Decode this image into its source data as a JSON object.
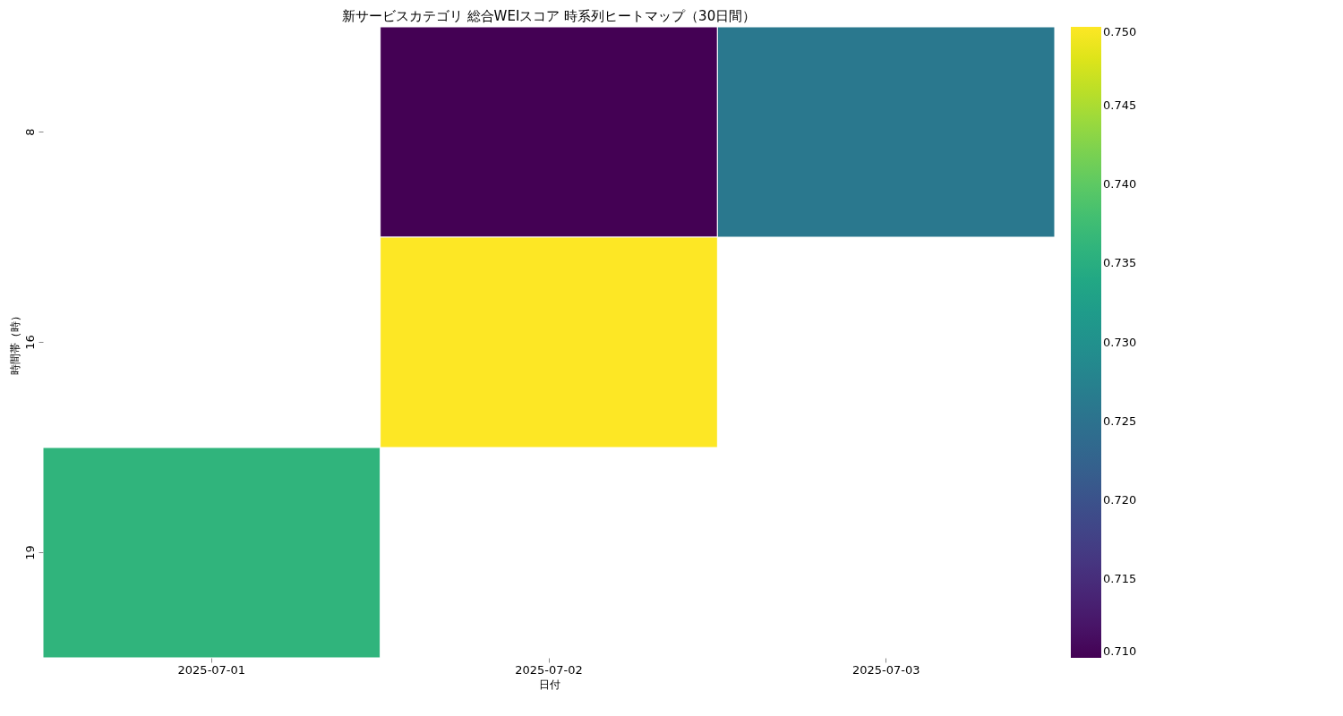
{
  "chart_data": {
    "type": "heatmap",
    "title": "新サービスカテゴリ 総合WEIスコア 時系列ヒートマップ（30日間）",
    "xlabel": "日付",
    "ylabel": "時間帯（時）",
    "categories": [
      "2025-07-01",
      "2025-07-02",
      "2025-07-03"
    ],
    "y_categories": [
      "8",
      "16",
      "19"
    ],
    "cells": [
      [
        null,
        0.71,
        0.726
      ],
      [
        null,
        0.75,
        null
      ],
      [
        0.736,
        null,
        null
      ]
    ],
    "clim": [
      0.71,
      0.75
    ],
    "cticks": [
      {
        "value": 0.71,
        "label": "0.710"
      },
      0.715,
      {
        "value": 0.72,
        "label": "0.720"
      },
      0.725,
      {
        "value": 0.73,
        "label": "0.730"
      },
      0.735,
      {
        "value": 0.74,
        "label": "0.740"
      },
      0.745,
      {
        "value": 0.75,
        "label": "0.750"
      }
    ]
  }
}
